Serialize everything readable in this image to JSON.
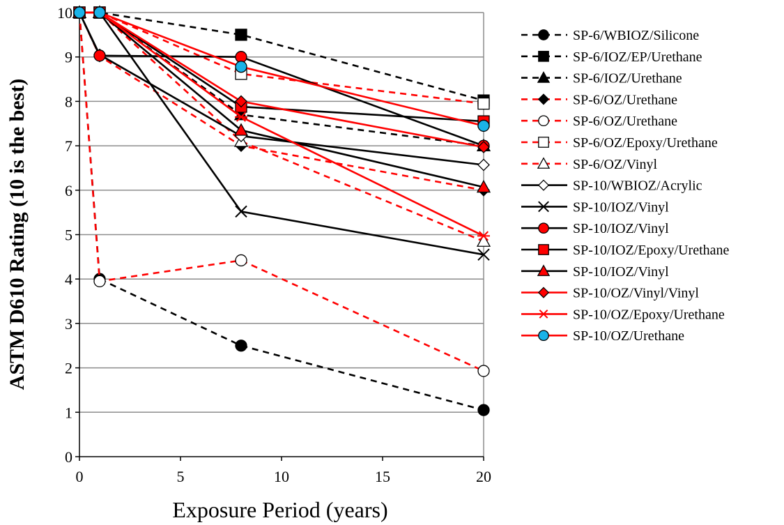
{
  "chart_data": {
    "type": "line",
    "title": "",
    "xlabel": "Exposure Period (years)",
    "ylabel": "ASTM D610 Rating (10 is the best)",
    "x_ticks": [
      0,
      5,
      10,
      15,
      20
    ],
    "y_ticks": [
      0,
      1,
      2,
      3,
      4,
      5,
      6,
      7,
      8,
      9,
      10
    ],
    "xlim": [
      0,
      20
    ],
    "ylim": [
      0,
      10
    ],
    "grid": "horizontal",
    "legend_position": "right",
    "series": [
      {
        "name": "SP-6/WBIOZ/Silicone",
        "color": "#000000",
        "dash": "dashed",
        "marker": "circle",
        "fill": "filled",
        "points": [
          [
            0,
            10
          ],
          [
            1,
            4
          ],
          [
            8,
            2.5
          ],
          [
            20,
            1.05
          ]
        ]
      },
      {
        "name": "SP-6/IOZ/EP/Urethane",
        "color": "#000000",
        "dash": "dashed",
        "marker": "square",
        "fill": "filled",
        "points": [
          [
            0,
            10
          ],
          [
            1,
            10
          ],
          [
            8,
            9.5
          ],
          [
            20,
            8.02
          ]
        ]
      },
      {
        "name": "SP-6/IOZ/Urethane",
        "color": "#000000",
        "dash": "dashed",
        "marker": "triangle",
        "fill": "filled",
        "points": [
          [
            0,
            10
          ],
          [
            1,
            10
          ],
          [
            8,
            7.7
          ],
          [
            20,
            7.0
          ]
        ]
      },
      {
        "name": "SP-6/OZ/Urethane",
        "color": "#ff0000",
        "dash": "dashed",
        "marker": "diamond",
        "fill": "filled-black",
        "points": [
          [
            0,
            10
          ],
          [
            1,
            9.02
          ],
          [
            8,
            7.0
          ],
          [
            20,
            6.0
          ]
        ]
      },
      {
        "name": "SP-6/OZ/Urethane",
        "color": "#ff0000",
        "dash": "dashed",
        "marker": "circle",
        "fill": "open",
        "points": [
          [
            0,
            10
          ],
          [
            1,
            3.95
          ],
          [
            8,
            4.42
          ],
          [
            20,
            1.93
          ]
        ]
      },
      {
        "name": "SP-6/OZ/Epoxy/Urethane",
        "color": "#ff0000",
        "dash": "dashed",
        "marker": "square",
        "fill": "open",
        "points": [
          [
            0,
            10
          ],
          [
            1,
            10
          ],
          [
            8,
            8.62
          ],
          [
            20,
            7.95
          ]
        ]
      },
      {
        "name": "SP-6/OZ/Vinyl",
        "color": "#ff0000",
        "dash": "dashed",
        "marker": "triangle",
        "fill": "open",
        "points": [
          [
            0,
            10
          ],
          [
            1,
            10
          ],
          [
            8,
            7.1
          ],
          [
            20,
            4.85
          ]
        ]
      },
      {
        "name": "SP-10/WBIOZ/Acrylic",
        "color": "#000000",
        "dash": "solid",
        "marker": "diamond",
        "fill": "open",
        "points": [
          [
            0,
            10
          ],
          [
            1,
            9.05
          ],
          [
            8,
            7.22
          ],
          [
            20,
            6.57
          ]
        ]
      },
      {
        "name": "SP-10/IOZ/Vinyl",
        "color": "#000000",
        "dash": "solid",
        "marker": "x",
        "fill": "none",
        "points": [
          [
            0,
            10
          ],
          [
            1,
            10
          ],
          [
            8,
            5.52
          ],
          [
            20,
            4.55
          ]
        ]
      },
      {
        "name": "SP-10/IOZ/Vinyl",
        "color": "#000000",
        "dash": "solid",
        "marker": "circle",
        "fill": "red",
        "points": [
          [
            0,
            10
          ],
          [
            1,
            9.03
          ],
          [
            8,
            9.0
          ],
          [
            20,
            7.0
          ]
        ]
      },
      {
        "name": "SP-10/IOZ/Epoxy/Urethane",
        "color": "#000000",
        "dash": "solid",
        "marker": "square",
        "fill": "red",
        "points": [
          [
            0,
            10
          ],
          [
            1,
            10
          ],
          [
            8,
            7.88
          ],
          [
            20,
            7.55
          ]
        ]
      },
      {
        "name": "SP-10/IOZ/Vinyl",
        "color": "#000000",
        "dash": "solid",
        "marker": "triangle",
        "fill": "red",
        "points": [
          [
            0,
            10
          ],
          [
            1,
            10
          ],
          [
            8,
            7.35
          ],
          [
            20,
            6.07
          ]
        ]
      },
      {
        "name": "SP-10/OZ/Vinyl/Vinyl",
        "color": "#ff0000",
        "dash": "solid",
        "marker": "diamond",
        "fill": "red",
        "points": [
          [
            0,
            10
          ],
          [
            1,
            10
          ],
          [
            8,
            8.0
          ],
          [
            20,
            6.97
          ]
        ]
      },
      {
        "name": "SP-10/OZ/Epoxy/Urethane",
        "color": "#ff0000",
        "dash": "solid",
        "marker": "asterisk",
        "fill": "none",
        "points": [
          [
            0,
            10
          ],
          [
            1,
            10
          ],
          [
            8,
            7.65
          ],
          [
            20,
            4.97
          ]
        ]
      },
      {
        "name": "SP-10/OZ/Urethane",
        "color": "#ff0000",
        "dash": "solid",
        "marker": "circle",
        "fill": "blue",
        "points": [
          [
            0,
            10
          ],
          [
            1,
            10
          ],
          [
            8,
            8.78
          ],
          [
            20,
            7.45
          ]
        ]
      }
    ]
  }
}
